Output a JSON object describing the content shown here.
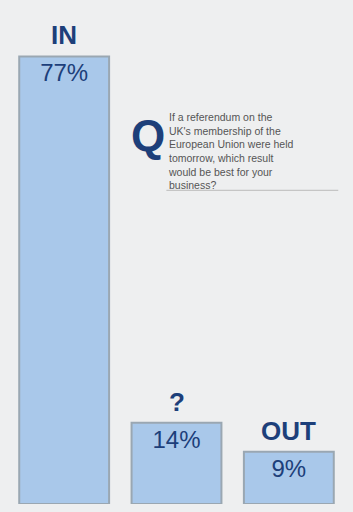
{
  "chart_data": {
    "type": "bar",
    "title": "If a referendum on the UK's membership of the European Union were held tomorrow, which result would be best for your business?",
    "annotations": [
      {
        "text": "Q"
      }
    ],
    "categories": [
      "IN",
      "?",
      "OUT"
    ],
    "values": [
      77,
      14,
      9
    ],
    "value_labels": [
      "77%",
      "14%",
      "9%"
    ],
    "data_labels": true,
    "tick_labels": false,
    "grid": false,
    "color": "#a9c8ea",
    "ylim": [
      0,
      85
    ]
  }
}
